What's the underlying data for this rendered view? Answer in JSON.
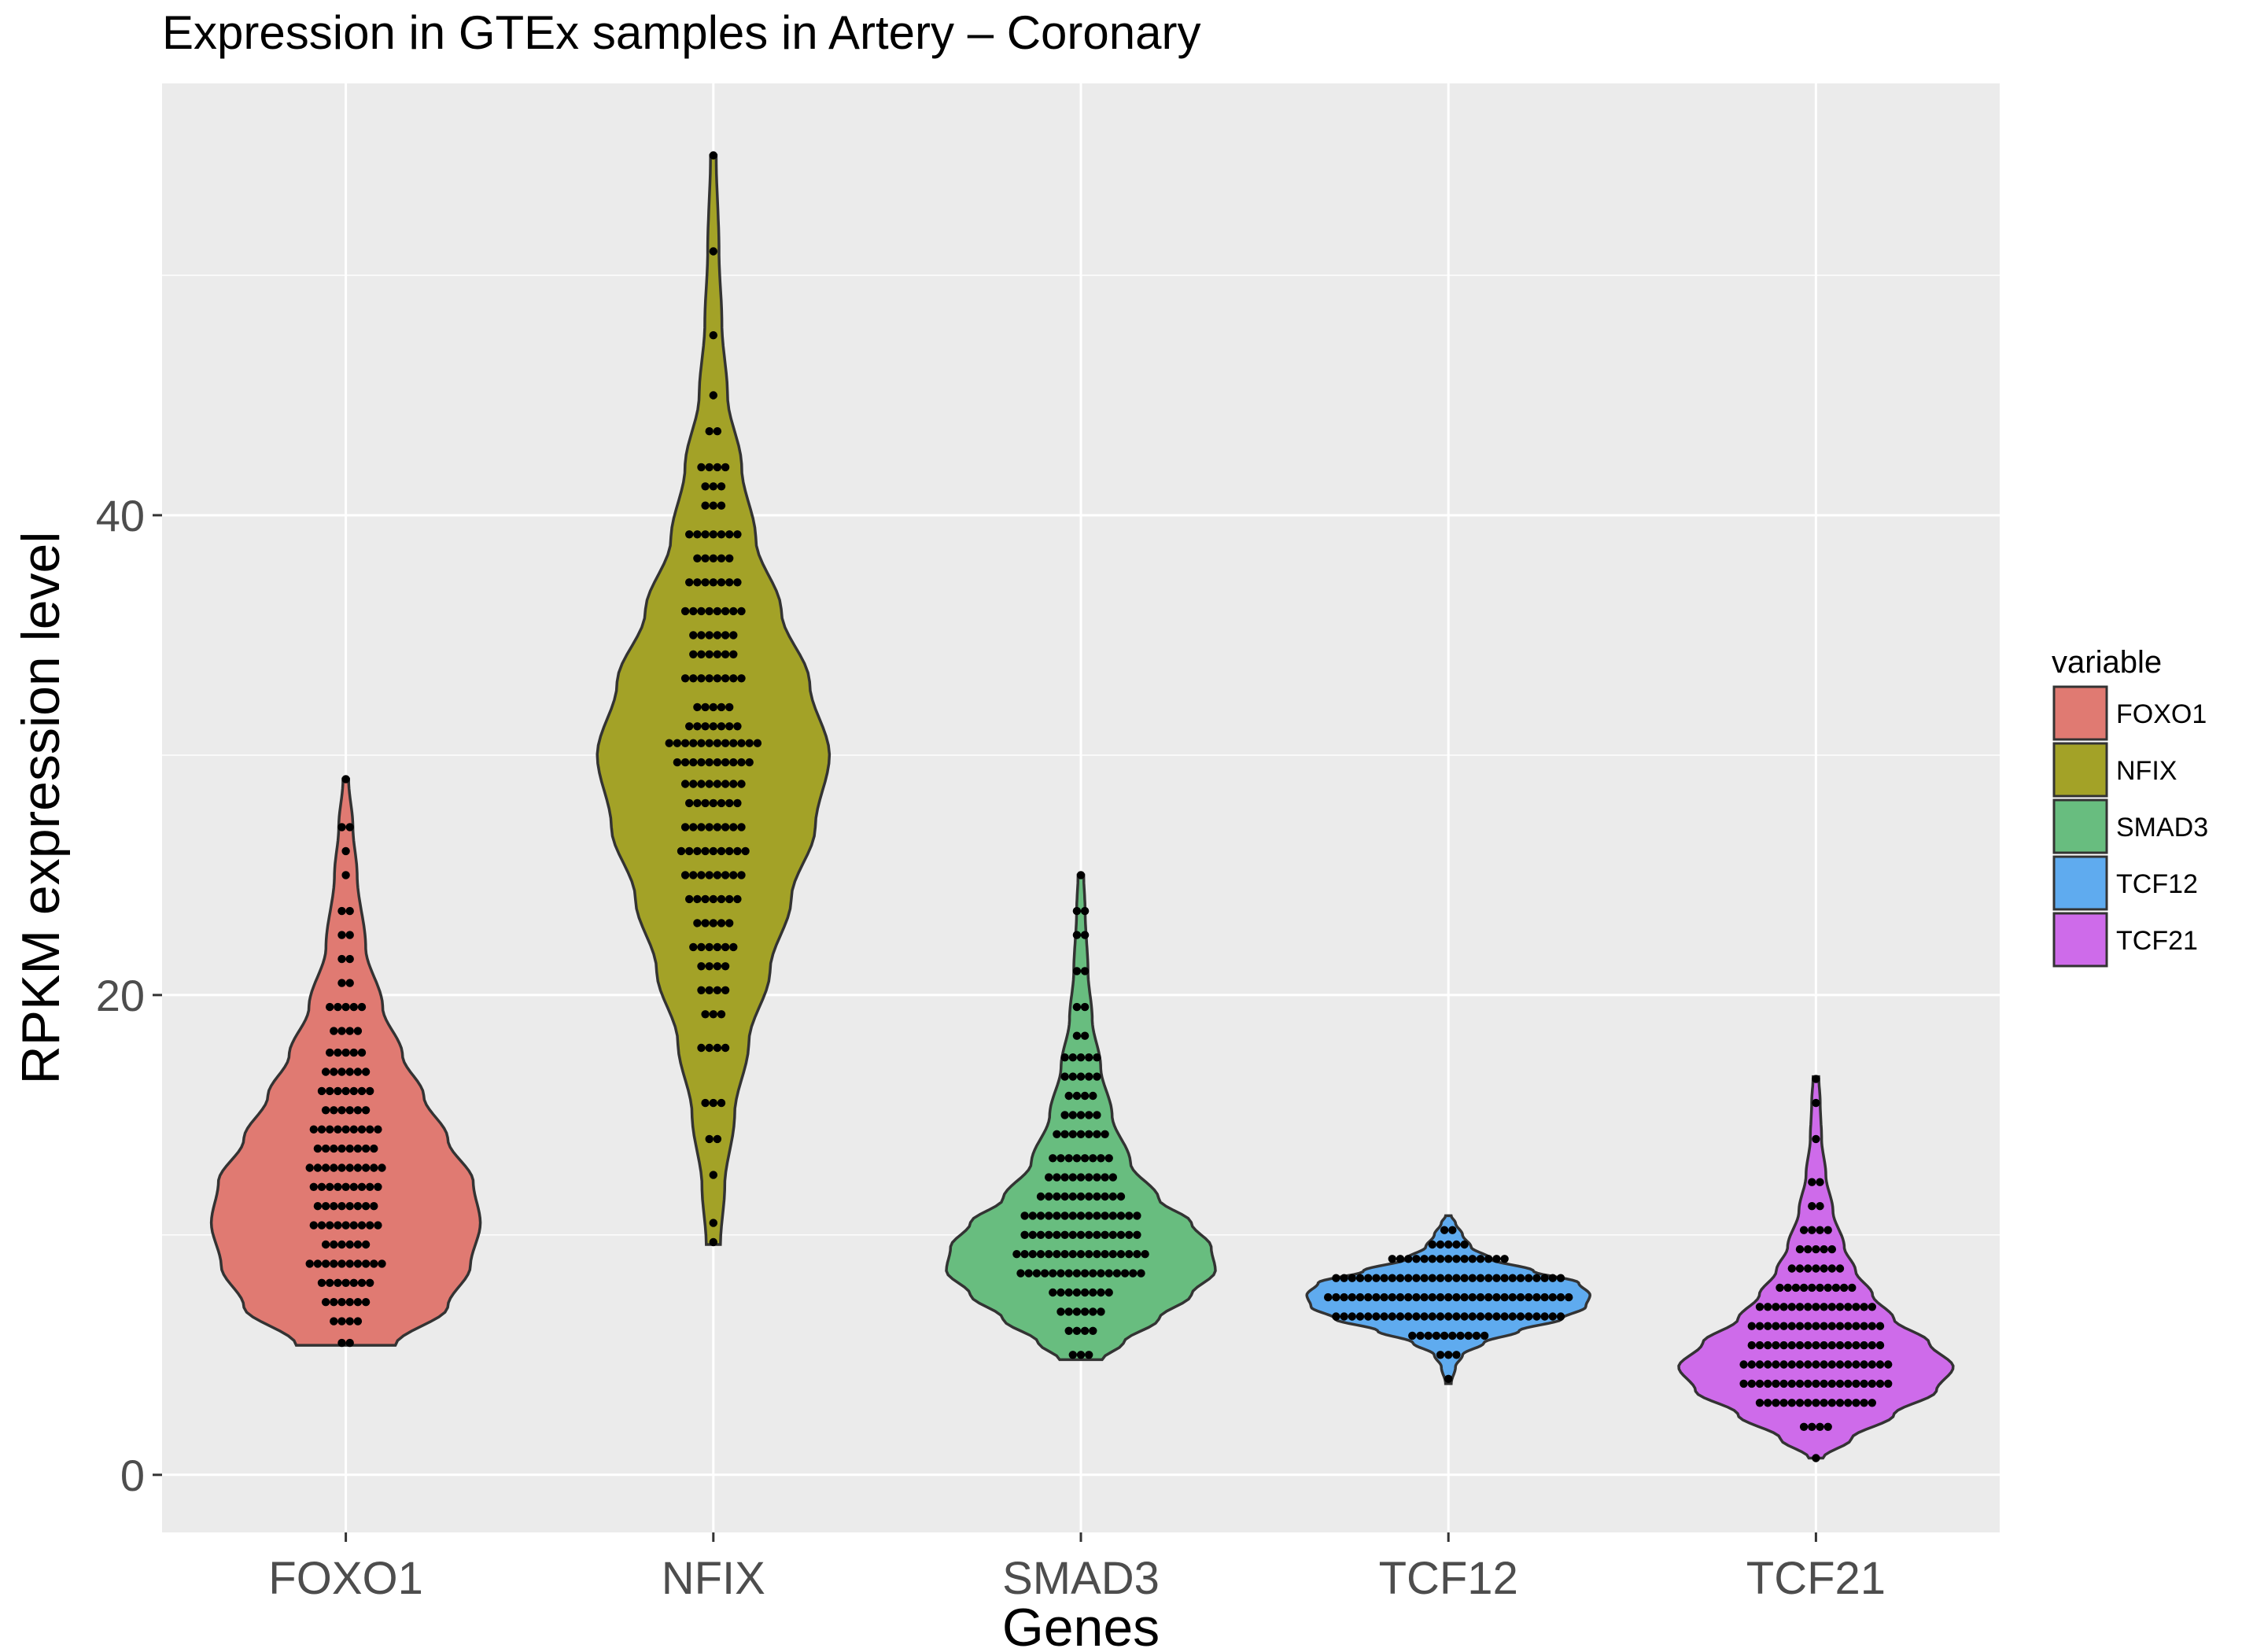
{
  "chart_data": {
    "type": "violin",
    "title": "Expression in GTEx samples in Artery – Coronary",
    "xlabel": "Genes",
    "ylabel": "RPKM expression level",
    "ylim": [
      -2.4,
      58.0
    ],
    "y_ticks": [
      0,
      20,
      40
    ],
    "grid": true,
    "categories": [
      "FOXO1",
      "NFIX",
      "SMAD3",
      "TCF12",
      "TCF21"
    ],
    "legend": {
      "title": "variable",
      "position": "right",
      "entries": [
        "FOXO1",
        "NFIX",
        "SMAD3",
        "TCF12",
        "TCF21"
      ]
    },
    "colors": {
      "panel": "#ebebeb",
      "grid": "#ffffff",
      "FOXO1": "#e07a72",
      "NFIX": "#a3a227",
      "SMAD3": "#68bd7f",
      "TCF12": "#5fabef",
      "TCF21": "#ce6bea",
      "outline": "#333333",
      "points": "#000000"
    },
    "series": [
      {
        "name": "FOXO1",
        "min": 5.4,
        "max": 29.0,
        "density": [
          [
            5.4,
            0.35
          ],
          [
            7.0,
            0.72
          ],
          [
            8.7,
            0.88
          ],
          [
            10.5,
            0.95
          ],
          [
            12.2,
            0.9
          ],
          [
            14.0,
            0.72
          ],
          [
            15.8,
            0.55
          ],
          [
            17.5,
            0.4
          ],
          [
            19.5,
            0.26
          ],
          [
            22.0,
            0.14
          ],
          [
            25.0,
            0.08
          ],
          [
            27.0,
            0.05
          ],
          [
            29.0,
            0.02
          ]
        ],
        "dots": [
          [
            5.5,
            2
          ],
          [
            6.4,
            4
          ],
          [
            7.2,
            6
          ],
          [
            8.0,
            7
          ],
          [
            8.8,
            10
          ],
          [
            9.6,
            6
          ],
          [
            10.4,
            9
          ],
          [
            11.2,
            8
          ],
          [
            12.0,
            9
          ],
          [
            12.8,
            10
          ],
          [
            13.6,
            8
          ],
          [
            14.4,
            9
          ],
          [
            15.2,
            6
          ],
          [
            16.0,
            7
          ],
          [
            16.8,
            6
          ],
          [
            17.6,
            5
          ],
          [
            18.5,
            4
          ],
          [
            19.5,
            5
          ],
          [
            20.5,
            2
          ],
          [
            21.5,
            2
          ],
          [
            22.5,
            2
          ],
          [
            23.5,
            2
          ],
          [
            25.0,
            1
          ],
          [
            26.0,
            1
          ],
          [
            27.0,
            2
          ],
          [
            29.0,
            1
          ]
        ]
      },
      {
        "name": "NFIX",
        "min": 9.6,
        "max": 55.0,
        "density": [
          [
            9.6,
            0.05
          ],
          [
            12.0,
            0.08
          ],
          [
            15.0,
            0.15
          ],
          [
            18.0,
            0.25
          ],
          [
            21.0,
            0.4
          ],
          [
            24.0,
            0.55
          ],
          [
            27.0,
            0.72
          ],
          [
            30.0,
            0.82
          ],
          [
            33.0,
            0.68
          ],
          [
            36.0,
            0.48
          ],
          [
            39.0,
            0.3
          ],
          [
            42.0,
            0.2
          ],
          [
            45.0,
            0.1
          ],
          [
            48.0,
            0.06
          ],
          [
            51.0,
            0.04
          ],
          [
            55.0,
            0.02
          ]
        ],
        "dots": [
          [
            9.7,
            1
          ],
          [
            10.5,
            1
          ],
          [
            12.5,
            1
          ],
          [
            14.0,
            2
          ],
          [
            15.5,
            3
          ],
          [
            17.8,
            4
          ],
          [
            19.2,
            3
          ],
          [
            20.2,
            4
          ],
          [
            21.2,
            4
          ],
          [
            22.0,
            6
          ],
          [
            23.0,
            5
          ],
          [
            24.0,
            7
          ],
          [
            25.0,
            8
          ],
          [
            26.0,
            9
          ],
          [
            27.0,
            8
          ],
          [
            28.0,
            7
          ],
          [
            28.8,
            8
          ],
          [
            29.7,
            10
          ],
          [
            30.5,
            12
          ],
          [
            31.2,
            7
          ],
          [
            32.0,
            5
          ],
          [
            33.2,
            8
          ],
          [
            34.2,
            6
          ],
          [
            35.0,
            6
          ],
          [
            36.0,
            8
          ],
          [
            37.2,
            7
          ],
          [
            38.2,
            5
          ],
          [
            39.2,
            7
          ],
          [
            40.4,
            3
          ],
          [
            41.2,
            3
          ],
          [
            42.0,
            4
          ],
          [
            43.5,
            2
          ],
          [
            45.0,
            1
          ],
          [
            47.5,
            1
          ],
          [
            51.0,
            1
          ],
          [
            55.0,
            1
          ]
        ]
      },
      {
        "name": "SMAD3",
        "min": 4.8,
        "max": 25.0,
        "density": [
          [
            4.8,
            0.15
          ],
          [
            5.5,
            0.3
          ],
          [
            6.5,
            0.55
          ],
          [
            7.5,
            0.78
          ],
          [
            8.5,
            0.95
          ],
          [
            9.5,
            0.92
          ],
          [
            10.5,
            0.78
          ],
          [
            11.5,
            0.55
          ],
          [
            13.0,
            0.35
          ],
          [
            15.0,
            0.22
          ],
          [
            17.0,
            0.14
          ],
          [
            19.0,
            0.08
          ],
          [
            21.0,
            0.05
          ],
          [
            23.5,
            0.03
          ],
          [
            25.0,
            0.02
          ]
        ],
        "dots": [
          [
            5.0,
            3
          ],
          [
            6.0,
            4
          ],
          [
            6.8,
            6
          ],
          [
            7.6,
            8
          ],
          [
            8.4,
            16
          ],
          [
            9.2,
            17
          ],
          [
            10.0,
            15
          ],
          [
            10.8,
            15
          ],
          [
            11.6,
            11
          ],
          [
            12.4,
            9
          ],
          [
            13.2,
            8
          ],
          [
            14.2,
            7
          ],
          [
            15.0,
            5
          ],
          [
            15.8,
            4
          ],
          [
            16.6,
            5
          ],
          [
            17.4,
            5
          ],
          [
            18.3,
            2
          ],
          [
            19.5,
            2
          ],
          [
            21.0,
            2
          ],
          [
            22.5,
            2
          ],
          [
            23.5,
            2
          ],
          [
            25.0,
            1
          ]
        ]
      },
      {
        "name": "TCF12",
        "min": 3.8,
        "max": 10.8,
        "density": [
          [
            3.8,
            0.02
          ],
          [
            4.5,
            0.05
          ],
          [
            5.0,
            0.1
          ],
          [
            5.5,
            0.25
          ],
          [
            6.0,
            0.5
          ],
          [
            6.5,
            0.8
          ],
          [
            7.0,
            0.97
          ],
          [
            7.5,
            1.0
          ],
          [
            8.0,
            0.92
          ],
          [
            8.5,
            0.6
          ],
          [
            9.0,
            0.3
          ],
          [
            9.5,
            0.16
          ],
          [
            10.0,
            0.1
          ],
          [
            10.5,
            0.05
          ],
          [
            10.8,
            0.02
          ]
        ],
        "dots": [
          [
            4.0,
            1
          ],
          [
            5.0,
            3
          ],
          [
            5.8,
            10
          ],
          [
            6.6,
            29
          ],
          [
            7.4,
            31
          ],
          [
            8.2,
            29
          ],
          [
            9.0,
            15
          ],
          [
            9.6,
            5
          ],
          [
            10.2,
            2
          ]
        ]
      },
      {
        "name": "TCF21",
        "min": 0.7,
        "max": 16.6,
        "density": [
          [
            0.7,
            0.05
          ],
          [
            1.5,
            0.25
          ],
          [
            2.5,
            0.55
          ],
          [
            3.5,
            0.85
          ],
          [
            4.5,
            0.97
          ],
          [
            5.5,
            0.8
          ],
          [
            6.5,
            0.55
          ],
          [
            7.5,
            0.4
          ],
          [
            8.5,
            0.28
          ],
          [
            9.5,
            0.2
          ],
          [
            11.0,
            0.12
          ],
          [
            12.5,
            0.07
          ],
          [
            14.0,
            0.04
          ],
          [
            15.5,
            0.03
          ],
          [
            16.6,
            0.02
          ]
        ],
        "dots": [
          [
            0.7,
            1
          ],
          [
            2.0,
            4
          ],
          [
            3.0,
            15
          ],
          [
            3.8,
            19
          ],
          [
            4.6,
            19
          ],
          [
            5.4,
            17
          ],
          [
            6.2,
            17
          ],
          [
            7.0,
            15
          ],
          [
            7.8,
            10
          ],
          [
            8.6,
            7
          ],
          [
            9.4,
            5
          ],
          [
            10.2,
            4
          ],
          [
            11.2,
            2
          ],
          [
            12.2,
            2
          ],
          [
            14.0,
            1
          ],
          [
            15.5,
            1
          ],
          [
            16.5,
            1
          ]
        ]
      }
    ]
  }
}
